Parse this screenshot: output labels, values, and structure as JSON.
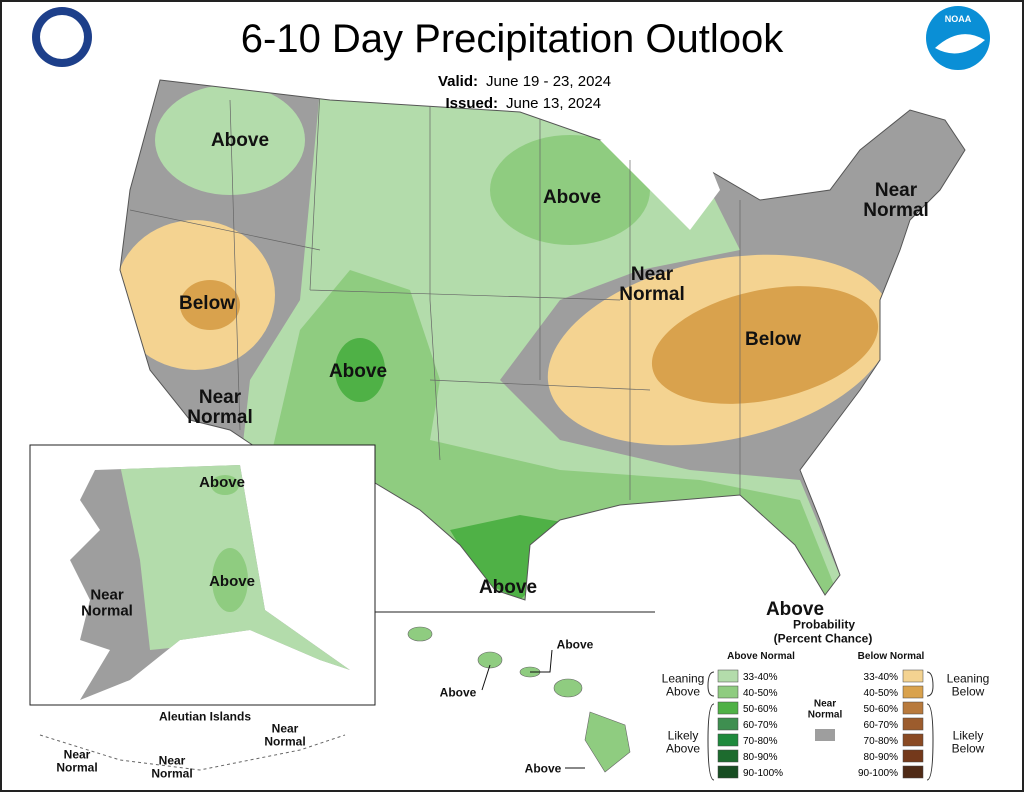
{
  "title": "6-10 Day Precipitation Outlook",
  "valid": {
    "label": "Valid:",
    "value": "June 19 - 23, 2024"
  },
  "issued": {
    "label": "Issued:",
    "value": "June 13, 2024"
  },
  "logo_text": "NOAA",
  "conus_labels": [
    "Above",
    "Above",
    "Below",
    "Near Normal",
    "Near Normal",
    "Below",
    "Above",
    "Near Normal",
    "Above"
  ],
  "alaska_labels": [
    "Above",
    "Above",
    "Near Normal"
  ],
  "aleutian": {
    "title": "Aleutian Islands",
    "labels": [
      "Near Normal",
      "Near Normal",
      "Near Normal"
    ]
  },
  "hawaii_labels": [
    "Above",
    "Above",
    "Above"
  ],
  "legend": {
    "title": "Above",
    "subtitle": [
      "Probability",
      "(Percent Chance)"
    ],
    "above_header": "Above Normal",
    "below_header": "Below Normal",
    "above_bins": [
      "33-40%",
      "40-50%",
      "50-60%",
      "60-70%",
      "70-80%",
      "80-90%",
      "90-100%"
    ],
    "below_bins": [
      "33-40%",
      "40-50%",
      "50-60%",
      "60-70%",
      "70-80%",
      "80-90%",
      "90-100%"
    ],
    "above_colors": [
      "#b3dcab",
      "#8fcc80",
      "#4fb146",
      "#3e8f50",
      "#1f8a3d",
      "#1d6b2e",
      "#174d22"
    ],
    "below_colors": [
      "#f4d391",
      "#d9a24d",
      "#b87a3d",
      "#9c5c2d",
      "#8a4a23",
      "#74391b",
      "#4f2a16"
    ],
    "near": "Near Normal",
    "near_color": "#9e9e9e",
    "leaning_above": "Leaning Above",
    "likely_above": "Likely Above",
    "leaning_below": "Leaning Below",
    "likely_below": "Likely Below"
  }
}
